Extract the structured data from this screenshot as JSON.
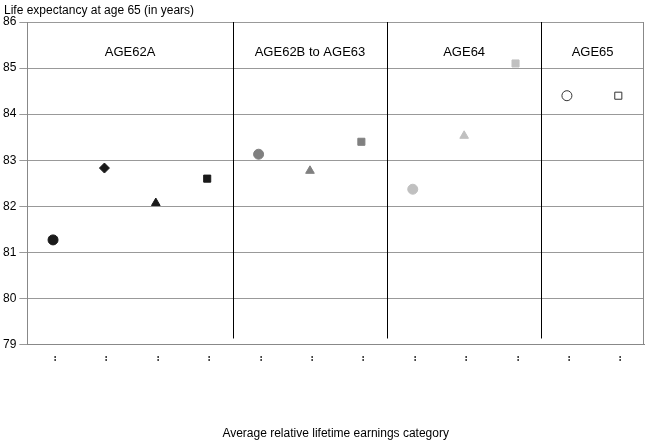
{
  "chart_data": {
    "type": "scatter",
    "y_label": "Life expectancy at age 65 (in years)",
    "x_label": "Average relative lifetime earnings category",
    "categories": [
      "..",
      "..",
      "..",
      "..",
      "..",
      "..",
      "..",
      "..",
      "..",
      "..",
      "..",
      ".."
    ],
    "series": [
      {
        "color": "#1a1a1a",
        "marker": "circle",
        "values": [
          81.27,
          null,
          null,
          null,
          null,
          null,
          null,
          null,
          null,
          null,
          null,
          null
        ]
      },
      {
        "color": "#1a1a1a",
        "marker": "diamond",
        "values": [
          null,
          82.83,
          null,
          null,
          null,
          null,
          null,
          null,
          null,
          null,
          null,
          null
        ]
      },
      {
        "color": "#1a1a1a",
        "marker": "triangle",
        "values": [
          null,
          null,
          82.07,
          null,
          null,
          null,
          null,
          null,
          null,
          null,
          null,
          null
        ]
      },
      {
        "color": "#1a1a1a",
        "marker": "square",
        "values": [
          null,
          null,
          null,
          82.6,
          null,
          null,
          null,
          null,
          null,
          null,
          null,
          null
        ]
      },
      {
        "color": "#808080",
        "marker": "circle",
        "values": [
          null,
          null,
          null,
          null,
          83.13,
          null,
          null,
          null,
          null,
          null,
          null,
          null
        ]
      },
      {
        "color": "#808080",
        "marker": "triangle",
        "values": [
          null,
          null,
          null,
          null,
          null,
          82.77,
          null,
          null,
          null,
          null,
          null,
          null
        ]
      },
      {
        "color": "#808080",
        "marker": "square",
        "values": [
          null,
          null,
          null,
          null,
          null,
          null,
          83.4,
          null,
          null,
          null,
          null,
          null
        ]
      },
      {
        "color": "#c0c0c0",
        "marker": "circle",
        "values": [
          null,
          null,
          null,
          null,
          null,
          null,
          null,
          82.37,
          null,
          null,
          null,
          null
        ]
      },
      {
        "color": "#c0c0c0",
        "marker": "triangle",
        "values": [
          null,
          null,
          null,
          null,
          null,
          null,
          null,
          null,
          83.53,
          null,
          null,
          null
        ]
      },
      {
        "color": "#c0c0c0",
        "marker": "square",
        "values": [
          null,
          null,
          null,
          null,
          null,
          null,
          null,
          null,
          null,
          85.1,
          null,
          null
        ]
      },
      {
        "color": "#333333",
        "marker": "circle-open",
        "values": [
          null,
          null,
          null,
          null,
          null,
          null,
          null,
          null,
          null,
          null,
          84.4,
          null
        ]
      },
      {
        "color": "#333333",
        "marker": "square-open",
        "values": [
          null,
          null,
          null,
          null,
          null,
          null,
          null,
          null,
          null,
          null,
          null,
          84.4
        ]
      }
    ],
    "annotations": [
      {
        "text": "AGE62A",
        "from": 0,
        "to": 3
      },
      {
        "text": "AGE62B to AGE63",
        "from": 4,
        "to": 6
      },
      {
        "text": "AGE64",
        "from": 7,
        "to": 9
      },
      {
        "text": "AGE65",
        "from": 10,
        "to": 11
      }
    ],
    "ylim": [
      79,
      86
    ],
    "yticks": [
      79,
      80,
      81,
      82,
      83,
      84,
      85,
      86
    ],
    "grid": true,
    "legend": false
  }
}
